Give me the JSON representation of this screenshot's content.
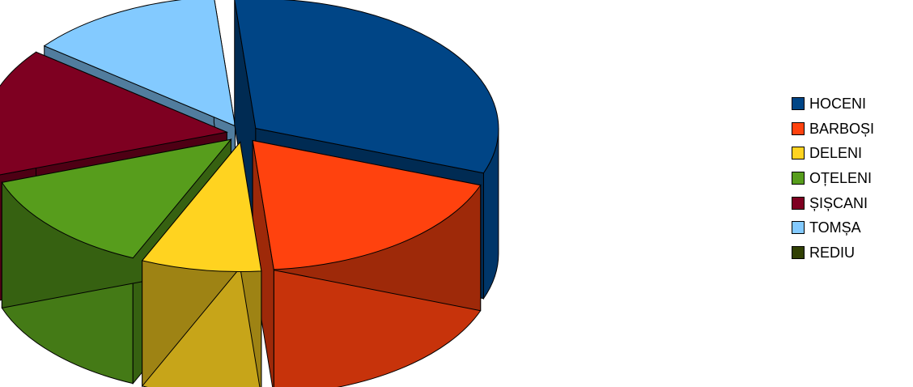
{
  "chart_data": {
    "type": "pie",
    "title": "",
    "pie_style": "3d-exploded",
    "legend_position": "right",
    "categories": [
      "HOCENI",
      "BARBOȘI",
      "DELENI",
      "OȚELENI",
      "ȘIȘCANI",
      "TOMȘA",
      "REDIU"
    ],
    "values": [
      32,
      18,
      8,
      13,
      16,
      13,
      0
    ],
    "colors": [
      "#004586",
      "#FF420E",
      "#FFD320",
      "#579D1C",
      "#7E0021",
      "#83CAFF",
      "#314004"
    ]
  }
}
